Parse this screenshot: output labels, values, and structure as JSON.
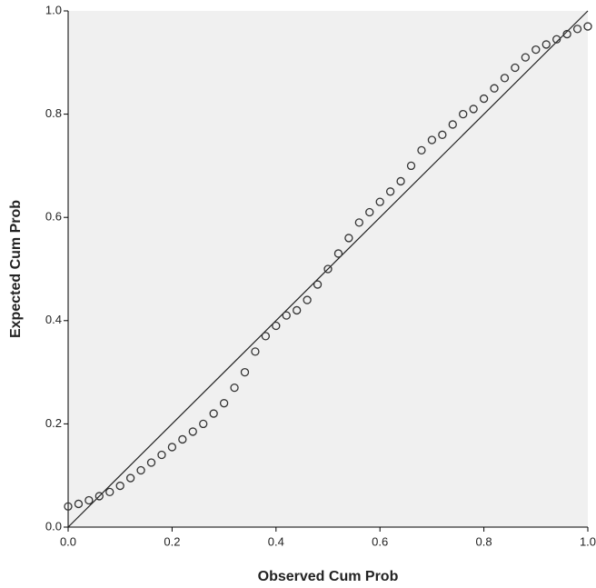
{
  "chart_data": {
    "type": "scatter",
    "x_label": "Observed Cum Prob",
    "y_label": "Expected Cum Prob",
    "xlim": [
      0,
      1
    ],
    "ylim": [
      0,
      1
    ],
    "xticks": [
      {
        "value": 0,
        "label": "0.0"
      },
      {
        "value": 0.2,
        "label": "0.2"
      },
      {
        "value": 0.4,
        "label": "0.4"
      },
      {
        "value": 0.6,
        "label": "0.6"
      },
      {
        "value": 0.8,
        "label": "0.8"
      },
      {
        "value": 1,
        "label": "1.0"
      }
    ],
    "yticks": [
      {
        "value": 0,
        "label": "0.0"
      },
      {
        "value": 0.2,
        "label": "0.2"
      },
      {
        "value": 0.4,
        "label": "0.4"
      },
      {
        "value": 0.6,
        "label": "0.6"
      },
      {
        "value": 0.8,
        "label": "0.8"
      },
      {
        "value": 1,
        "label": "1.0"
      }
    ],
    "color": "#333333",
    "reference_line": true,
    "x": [
      0,
      0.02,
      0.04,
      0.06,
      0.08,
      0.1,
      0.12,
      0.14,
      0.16,
      0.18,
      0.2,
      0.22,
      0.24,
      0.26,
      0.28,
      0.3,
      0.32,
      0.34,
      0.36,
      0.38,
      0.4,
      0.42,
      0.44,
      0.46,
      0.48,
      0.5,
      0.52,
      0.54,
      0.56,
      0.58,
      0.6,
      0.62,
      0.64,
      0.66,
      0.68,
      0.7,
      0.72,
      0.74,
      0.76,
      0.78,
      0.8,
      0.82,
      0.84,
      0.86,
      0.88,
      0.9,
      0.92,
      0.94,
      0.96,
      0.98,
      1.0
    ],
    "values": [
      0.04,
      0.045,
      0.052,
      0.06,
      0.068,
      0.08,
      0.095,
      0.11,
      0.125,
      0.14,
      0.155,
      0.17,
      0.185,
      0.2,
      0.22,
      0.24,
      0.27,
      0.3,
      0.34,
      0.37,
      0.39,
      0.41,
      0.42,
      0.44,
      0.47,
      0.5,
      0.53,
      0.56,
      0.59,
      0.61,
      0.63,
      0.65,
      0.67,
      0.7,
      0.73,
      0.75,
      0.76,
      0.78,
      0.8,
      0.81,
      0.83,
      0.85,
      0.87,
      0.89,
      0.91,
      0.925,
      0.935,
      0.945,
      0.955,
      0.965,
      0.97
    ]
  }
}
